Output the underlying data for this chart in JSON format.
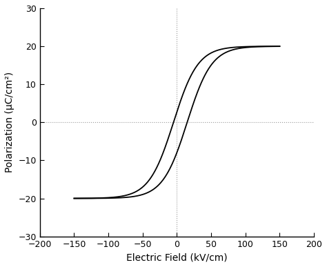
{
  "title": "",
  "xlabel": "Electric Field (kV/cm)",
  "ylabel": "Polarization (μC/cm²)",
  "xlim": [
    -200,
    200
  ],
  "ylim": [
    -30,
    30
  ],
  "xticks": [
    -200,
    -150,
    -100,
    -50,
    0,
    50,
    100,
    150,
    200
  ],
  "yticks": [
    -30,
    -20,
    -10,
    0,
    10,
    20,
    30
  ],
  "line_color": "#000000",
  "line_width": 1.3,
  "background_color": "#ffffff",
  "Psat": 22.5,
  "Ec_up": -5.0,
  "Ec_down": 15.0,
  "E_max": 150.0,
  "steepness": 0.028,
  "dotted_color": "#999999",
  "dotted_style": ":"
}
